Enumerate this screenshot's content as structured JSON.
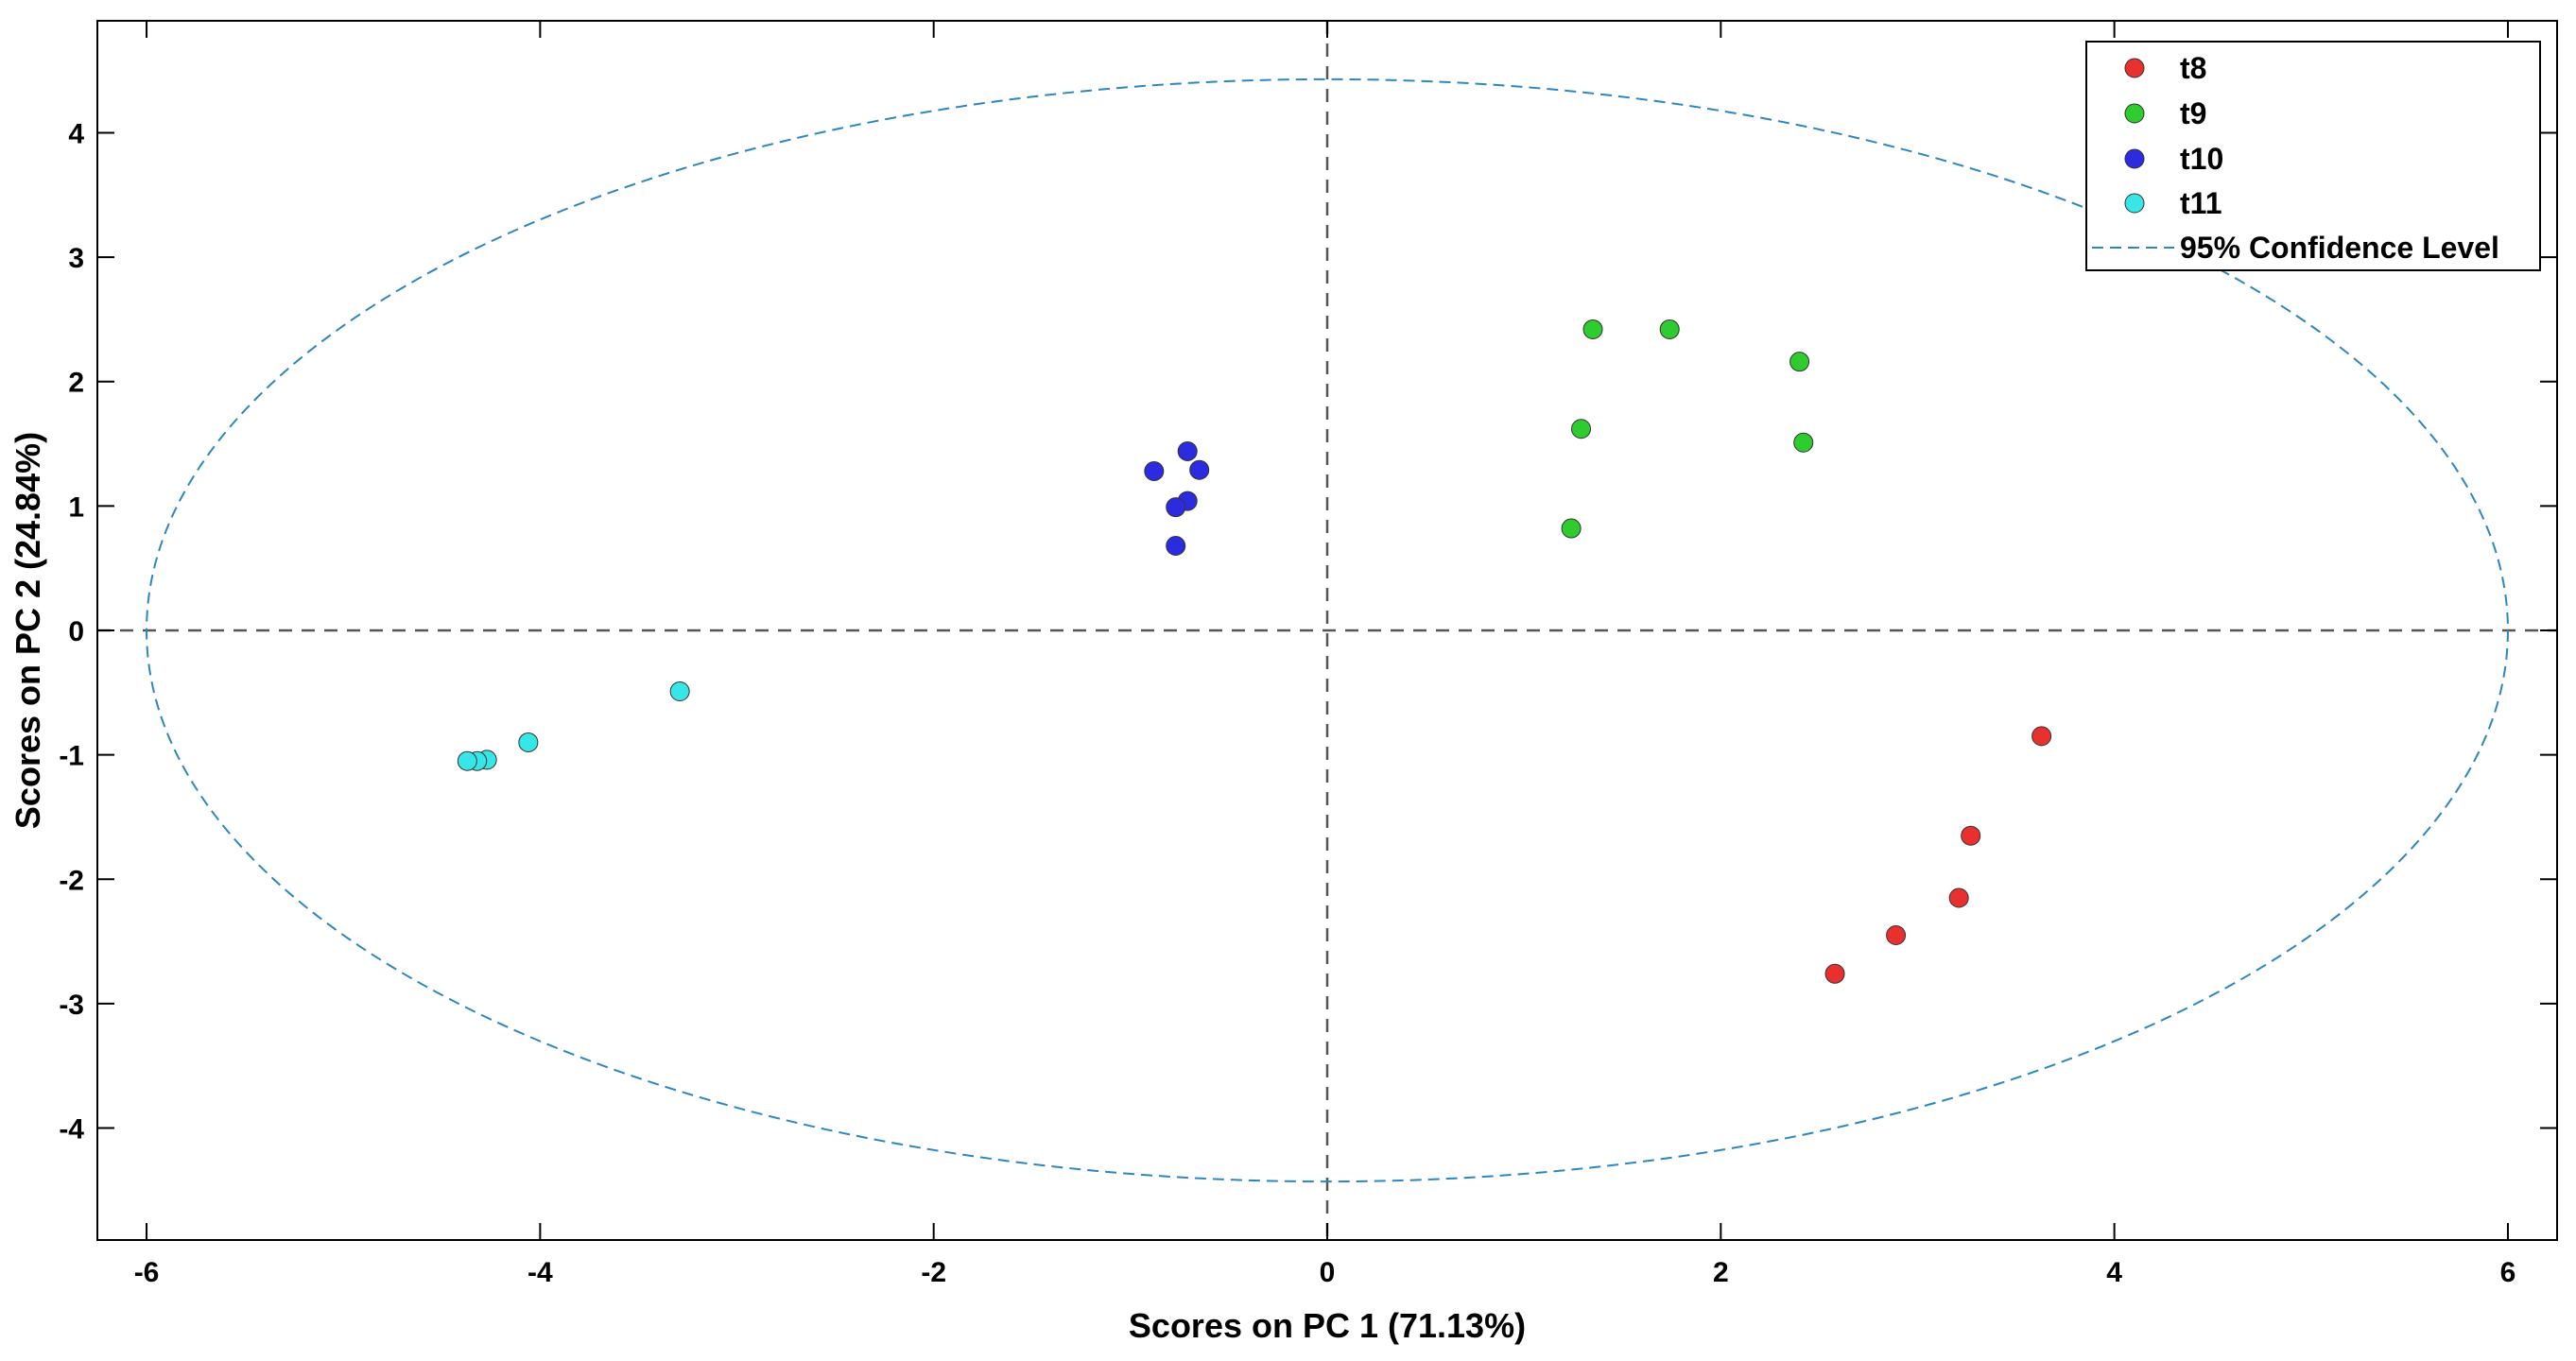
{
  "chart_data": {
    "type": "scatter",
    "xlabel": "Scores on PC 1 (71.13%)",
    "ylabel": "Scores on PC 2 (24.84%)",
    "xlim": [
      -6.25,
      6.25
    ],
    "ylim": [
      -4.9,
      4.9
    ],
    "xticks": [
      -6,
      -4,
      -2,
      0,
      2,
      4,
      6
    ],
    "yticks": [
      -4,
      -3,
      -2,
      -1,
      0,
      1,
      2,
      3,
      4
    ],
    "grid": false,
    "legend_position": "top-right",
    "zero_lines": true,
    "confidence_ellipse": {
      "name": "95% Confidence Level",
      "rx": 6.0,
      "ry": 4.43,
      "color": "#2e86c1"
    },
    "series": [
      {
        "name": "t8",
        "color": "#e8312f",
        "points": [
          [
            3.63,
            -0.85
          ],
          [
            3.27,
            -1.65
          ],
          [
            3.21,
            -2.15
          ],
          [
            2.89,
            -2.45
          ],
          [
            2.58,
            -2.76
          ]
        ]
      },
      {
        "name": "t9",
        "color": "#2ecc2e",
        "points": [
          [
            1.35,
            2.42
          ],
          [
            1.74,
            2.42
          ],
          [
            2.4,
            2.16
          ],
          [
            1.29,
            1.62
          ],
          [
            2.42,
            1.51
          ],
          [
            1.24,
            0.82
          ]
        ]
      },
      {
        "name": "t10",
        "color": "#2b2be0",
        "points": [
          [
            -0.71,
            1.44
          ],
          [
            -0.88,
            1.28
          ],
          [
            -0.65,
            1.29
          ],
          [
            -0.71,
            1.04
          ],
          [
            -0.77,
            0.99
          ],
          [
            -0.77,
            0.68
          ]
        ]
      },
      {
        "name": "t11",
        "color": "#37e6e6",
        "points": [
          [
            -3.29,
            -0.49
          ],
          [
            -4.06,
            -0.9
          ],
          [
            -4.27,
            -1.04
          ],
          [
            -4.32,
            -1.05
          ],
          [
            -4.37,
            -1.05
          ]
        ]
      }
    ]
  }
}
